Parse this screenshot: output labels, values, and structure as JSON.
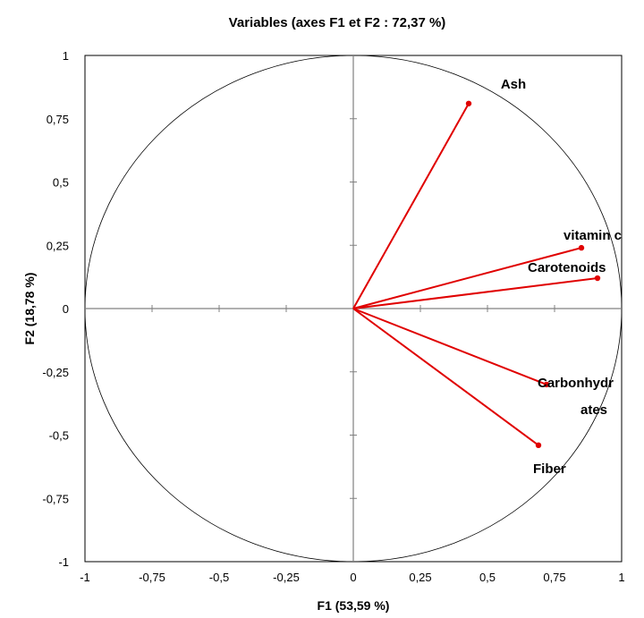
{
  "chart_data": {
    "type": "scatter",
    "title": "Variables (axes F1 et F2 : 72,37 %)",
    "xlabel": "F1 (53,59 %)",
    "ylabel": "F2 (18,78 %)",
    "xlim": [
      -1,
      1
    ],
    "ylim": [
      -1,
      1
    ],
    "x_ticks": [
      "-1",
      "-0,75",
      "-0,5",
      "-0,25",
      "0",
      "0,25",
      "0,5",
      "0,75",
      "1"
    ],
    "y_ticks": [
      "-1",
      "-0,75",
      "-0,5",
      "-0,25",
      "0",
      "0,25",
      "0,5",
      "0,75",
      "1"
    ],
    "grid": false,
    "correlation_circle": true,
    "vector_color": "#e00000",
    "variables": [
      {
        "label": "Ash",
        "x": 0.43,
        "y": 0.81
      },
      {
        "label": "vitamin c",
        "x": 0.85,
        "y": 0.24
      },
      {
        "label": "Carotenoids",
        "x": 0.91,
        "y": 0.12
      },
      {
        "label": "Carbonhydr ates",
        "label_lines": [
          "Carbonhydr",
          "ates"
        ],
        "x": 0.72,
        "y": -0.3
      },
      {
        "label": "Fiber",
        "x": 0.69,
        "y": -0.54
      }
    ]
  }
}
